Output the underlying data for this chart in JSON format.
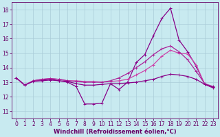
{
  "xlabel": "Windchill (Refroidissement éolien,°C)",
  "xlim": [
    -0.5,
    23.5
  ],
  "ylim": [
    10.5,
    18.5
  ],
  "yticks": [
    11,
    12,
    13,
    14,
    15,
    16,
    17,
    18
  ],
  "xticks": [
    0,
    1,
    2,
    3,
    4,
    5,
    6,
    7,
    8,
    9,
    10,
    11,
    12,
    13,
    14,
    15,
    16,
    17,
    18,
    19,
    20,
    21,
    22,
    23
  ],
  "background_color": "#c8eaf0",
  "grid_color": "#aaccd8",
  "lines": [
    {
      "x": [
        0,
        1,
        2,
        3,
        4,
        5,
        6,
        7,
        8,
        9,
        10,
        11,
        12,
        13,
        14,
        15,
        16,
        17,
        18,
        19,
        20,
        21,
        22,
        23
      ],
      "y": [
        13.3,
        12.8,
        13.1,
        13.15,
        13.2,
        13.1,
        13.0,
        12.7,
        11.5,
        11.5,
        11.55,
        12.9,
        12.5,
        13.0,
        14.35,
        14.9,
        16.2,
        17.4,
        18.1,
        15.9,
        15.1,
        14.1,
        12.85,
        12.6
      ],
      "color": "#880088",
      "lw": 0.9
    },
    {
      "x": [
        0,
        1,
        2,
        3,
        4,
        5,
        6,
        7,
        8,
        9,
        10,
        11,
        12,
        13,
        14,
        15,
        16,
        17,
        18,
        19,
        20,
        21,
        22,
        23
      ],
      "y": [
        13.3,
        12.8,
        13.1,
        13.2,
        13.25,
        13.2,
        13.1,
        13.1,
        13.05,
        13.05,
        13.0,
        13.05,
        13.1,
        13.2,
        13.5,
        13.8,
        14.2,
        14.8,
        15.2,
        15.0,
        14.95,
        14.2,
        12.85,
        12.65
      ],
      "color": "#cc44aa",
      "lw": 0.9
    },
    {
      "x": [
        0,
        1,
        2,
        3,
        4,
        5,
        6,
        7,
        8,
        9,
        10,
        11,
        12,
        13,
        14,
        15,
        16,
        17,
        18,
        19,
        20,
        21,
        22,
        23
      ],
      "y": [
        13.3,
        12.8,
        13.1,
        13.2,
        13.25,
        13.2,
        13.1,
        13.05,
        13.0,
        13.0,
        13.0,
        13.1,
        13.3,
        13.6,
        14.0,
        14.4,
        14.9,
        15.3,
        15.5,
        15.1,
        14.55,
        13.75,
        12.9,
        12.7
      ],
      "color": "#aa2299",
      "lw": 0.9
    },
    {
      "x": [
        0,
        1,
        2,
        3,
        4,
        5,
        6,
        7,
        8,
        9,
        10,
        11,
        12,
        13,
        14,
        15,
        16,
        17,
        18,
        19,
        20,
        21,
        22,
        23
      ],
      "y": [
        13.3,
        12.8,
        13.05,
        13.1,
        13.15,
        13.1,
        13.05,
        12.9,
        12.8,
        12.8,
        12.85,
        12.9,
        12.9,
        12.95,
        13.0,
        13.1,
        13.2,
        13.4,
        13.55,
        13.5,
        13.4,
        13.2,
        12.85,
        12.65
      ],
      "color": "#880088",
      "lw": 0.9
    }
  ],
  "font_size": 6,
  "tick_font_size": 5.5,
  "line_color_axes": "#660066"
}
